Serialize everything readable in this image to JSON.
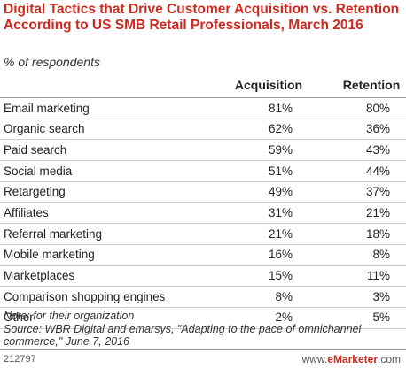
{
  "chart_data": {
    "type": "table",
    "title": "Digital Tactics that Drive Customer Acquisition vs. Retention According to US SMB Retail Professionals, March 2016",
    "subtitle": "% of respondents",
    "columns": [
      "Acquisition",
      "Retention"
    ],
    "rows": [
      {
        "label": "Email marketing",
        "acquisition": "81%",
        "retention": "80%"
      },
      {
        "label": "Organic search",
        "acquisition": "62%",
        "retention": "36%"
      },
      {
        "label": "Paid search",
        "acquisition": "59%",
        "retention": "43%"
      },
      {
        "label": "Social media",
        "acquisition": "51%",
        "retention": "44%"
      },
      {
        "label": "Retargeting",
        "acquisition": "49%",
        "retention": "37%"
      },
      {
        "label": "Affiliates",
        "acquisition": "31%",
        "retention": "21%"
      },
      {
        "label": "Referral marketing",
        "acquisition": "21%",
        "retention": "18%"
      },
      {
        "label": "Mobile marketing",
        "acquisition": "16%",
        "retention": "8%"
      },
      {
        "label": "Marketplaces",
        "acquisition": "15%",
        "retention": "11%"
      },
      {
        "label": "Comparison shopping engines",
        "acquisition": "8%",
        "retention": "3%"
      },
      {
        "label": "Other",
        "acquisition": "2%",
        "retention": "5%"
      }
    ]
  },
  "notes": {
    "note": "Note: for their organization",
    "source": "Source: WBR Digital and emarsys, \"Adapting to the pace of omnichannel commerce,\" June 7, 2016"
  },
  "footer": {
    "id": "212797",
    "brand_prefix": "www.",
    "brand_name": "eMarketer",
    "brand_suffix": ".com"
  },
  "colors": {
    "title": "#cc2a1f",
    "brand": "#cc2a1f"
  }
}
